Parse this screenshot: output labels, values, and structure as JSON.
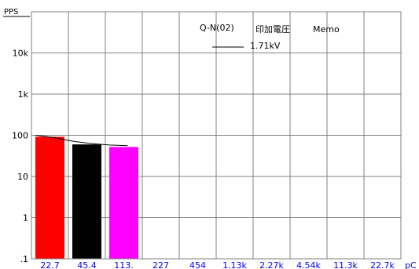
{
  "chart_data": {
    "type": "bar",
    "y_unit": "PPS",
    "x_unit": "pC",
    "y_scale": "log",
    "ylim": [
      0.1,
      100000
    ],
    "y_ticks": [
      {
        "value": 0.1,
        "label": ".1"
      },
      {
        "value": 1,
        "label": "1"
      },
      {
        "value": 10,
        "label": "10"
      },
      {
        "value": 100,
        "label": "100"
      },
      {
        "value": 1000,
        "label": "1k"
      },
      {
        "value": 10000,
        "label": "10k"
      }
    ],
    "categories": [
      "22.7",
      "45.4",
      "113.",
      "227",
      "454",
      "1.13k",
      "2.27k",
      "4.54k",
      "11.3k",
      "22.7k"
    ],
    "grid": true,
    "series": [
      {
        "color": "#ff0000",
        "values": [
          92,
          0,
          0,
          0,
          0,
          0,
          0,
          0,
          0,
          0
        ]
      },
      {
        "color": "#000000",
        "values": [
          0,
          60,
          0,
          0,
          0,
          0,
          0,
          0,
          0,
          0
        ]
      },
      {
        "color": "#ff00ff",
        "values": [
          0,
          0,
          52,
          0,
          0,
          0,
          0,
          0,
          0,
          0
        ]
      }
    ],
    "curve": {
      "color": "#000000",
      "points": [
        [
          0,
          100
        ],
        [
          0.5,
          88
        ],
        [
          1,
          72
        ],
        [
          1.5,
          63
        ],
        [
          2,
          58
        ],
        [
          2.5,
          56
        ]
      ]
    },
    "legend": {
      "position": "top-center",
      "line1": "Q-N(02)",
      "line2": "印加電圧",
      "line3": "Memo",
      "entry": "1.71kV"
    }
  },
  "colors": {
    "axis_label": "#0000ff",
    "grid": "#808080"
  }
}
